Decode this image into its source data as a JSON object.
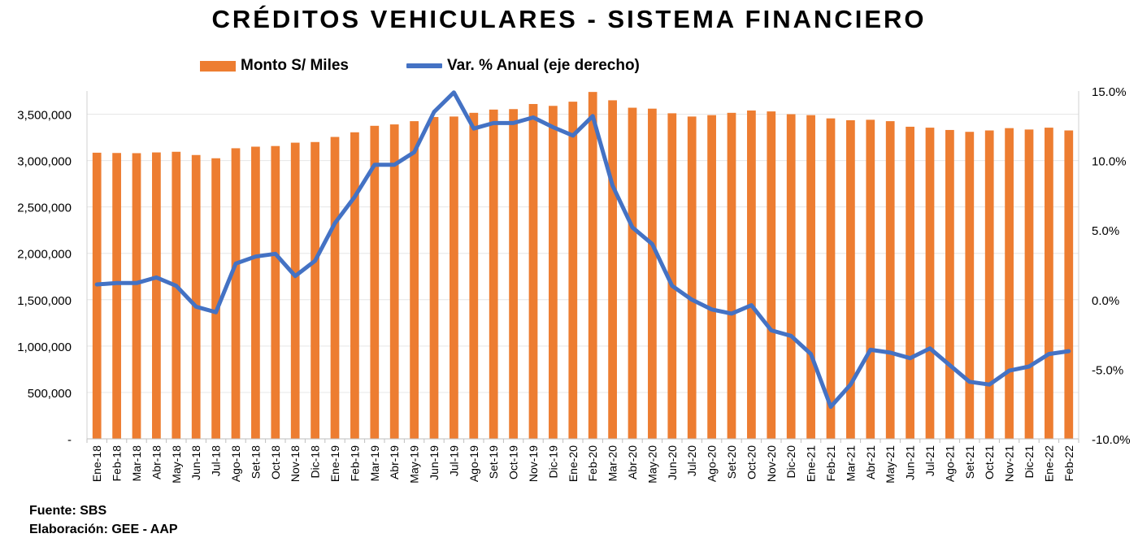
{
  "chart_data": {
    "type": "bar+line",
    "title": "CRÉDITOS VEHICULARES - SISTEMA FINANCIERO",
    "categories": [
      "Ene-18",
      "Feb-18",
      "Mar-18",
      "Abr-18",
      "May-18",
      "Jun-18",
      "Jul-18",
      "Ago-18",
      "Set-18",
      "Oct-18",
      "Nov-18",
      "Dic-18",
      "Ene-19",
      "Feb-19",
      "Mar-19",
      "Abr-19",
      "May-19",
      "Jun-19",
      "Jul-19",
      "Ago-19",
      "Set-19",
      "Oct-19",
      "Nov-19",
      "Dic-19",
      "Ene-20",
      "Feb-20",
      "Mar-20",
      "Abr-20",
      "May-20",
      "Jun-20",
      "Jul-20",
      "Ago-20",
      "Set-20",
      "Oct-20",
      "Nov-20",
      "Dic-20",
      "Ene-21",
      "Feb-21",
      "Mar-21",
      "Abr-21",
      "May-21",
      "Jun-21",
      "Jul-21",
      "Ago-21",
      "Set-21",
      "Oct-21",
      "Nov-21",
      "Dic-21",
      "Ene-22",
      "Feb-22"
    ],
    "series": [
      {
        "name": "Monto S/ Miles",
        "type": "bar",
        "axis": "left",
        "color": "#ED7D31",
        "values": [
          3085000,
          3082000,
          3080000,
          3088000,
          3095000,
          3060000,
          3025000,
          3133000,
          3150000,
          3157000,
          3193000,
          3200000,
          3255000,
          3305000,
          3375000,
          3390000,
          3425000,
          3470000,
          3475000,
          3515000,
          3550000,
          3555000,
          3610000,
          3590000,
          3635000,
          3740000,
          3650000,
          3570000,
          3560000,
          3510000,
          3475000,
          3490000,
          3515000,
          3540000,
          3530000,
          3500000,
          3490000,
          3455000,
          3435000,
          3440000,
          3425000,
          3365000,
          3355000,
          3330000,
          3310000,
          3325000,
          3350000,
          3335000,
          3355000,
          3325000
        ]
      },
      {
        "name": "Var. % Anual (eje derecho)",
        "type": "line",
        "axis": "right",
        "color": "#4472C4",
        "values": [
          1.1,
          1.2,
          1.2,
          1.6,
          1.0,
          -0.5,
          -0.9,
          2.6,
          3.1,
          3.3,
          1.7,
          2.8,
          5.5,
          7.4,
          9.7,
          9.7,
          10.6,
          13.5,
          14.9,
          12.3,
          12.7,
          12.7,
          13.1,
          12.4,
          11.8,
          13.2,
          8.2,
          5.2,
          4.0,
          1.0,
          0.0,
          -0.7,
          -1.0,
          -0.4,
          -2.2,
          -2.6,
          -3.9,
          -7.7,
          -6.1,
          -3.6,
          -3.8,
          -4.2,
          -3.5,
          -4.7,
          -5.9,
          -6.1,
          -5.1,
          -4.8,
          -3.9,
          -3.7
        ]
      }
    ],
    "y_left": {
      "min": 0,
      "max": 3750000,
      "ticks": [
        0,
        500000,
        1000000,
        1500000,
        2000000,
        2500000,
        3000000,
        3500000
      ],
      "tick_labels": [
        "-",
        "500,000",
        "1,000,000",
        "1,500,000",
        "2,000,000",
        "2,500,000",
        "3,000,000",
        "3,500,000"
      ]
    },
    "y_right": {
      "min": -10,
      "max": 15,
      "ticks": [
        -10,
        -5,
        0,
        5,
        10,
        15
      ],
      "tick_labels": [
        "-10.0%",
        "-5.0%",
        "0.0%",
        "5.0%",
        "10.0%",
        "15.0%"
      ]
    },
    "grid": true,
    "legend": "top"
  },
  "footnotes": {
    "source": "Fuente: SBS",
    "elaboration": "Elaboración: GEE - AAP"
  }
}
